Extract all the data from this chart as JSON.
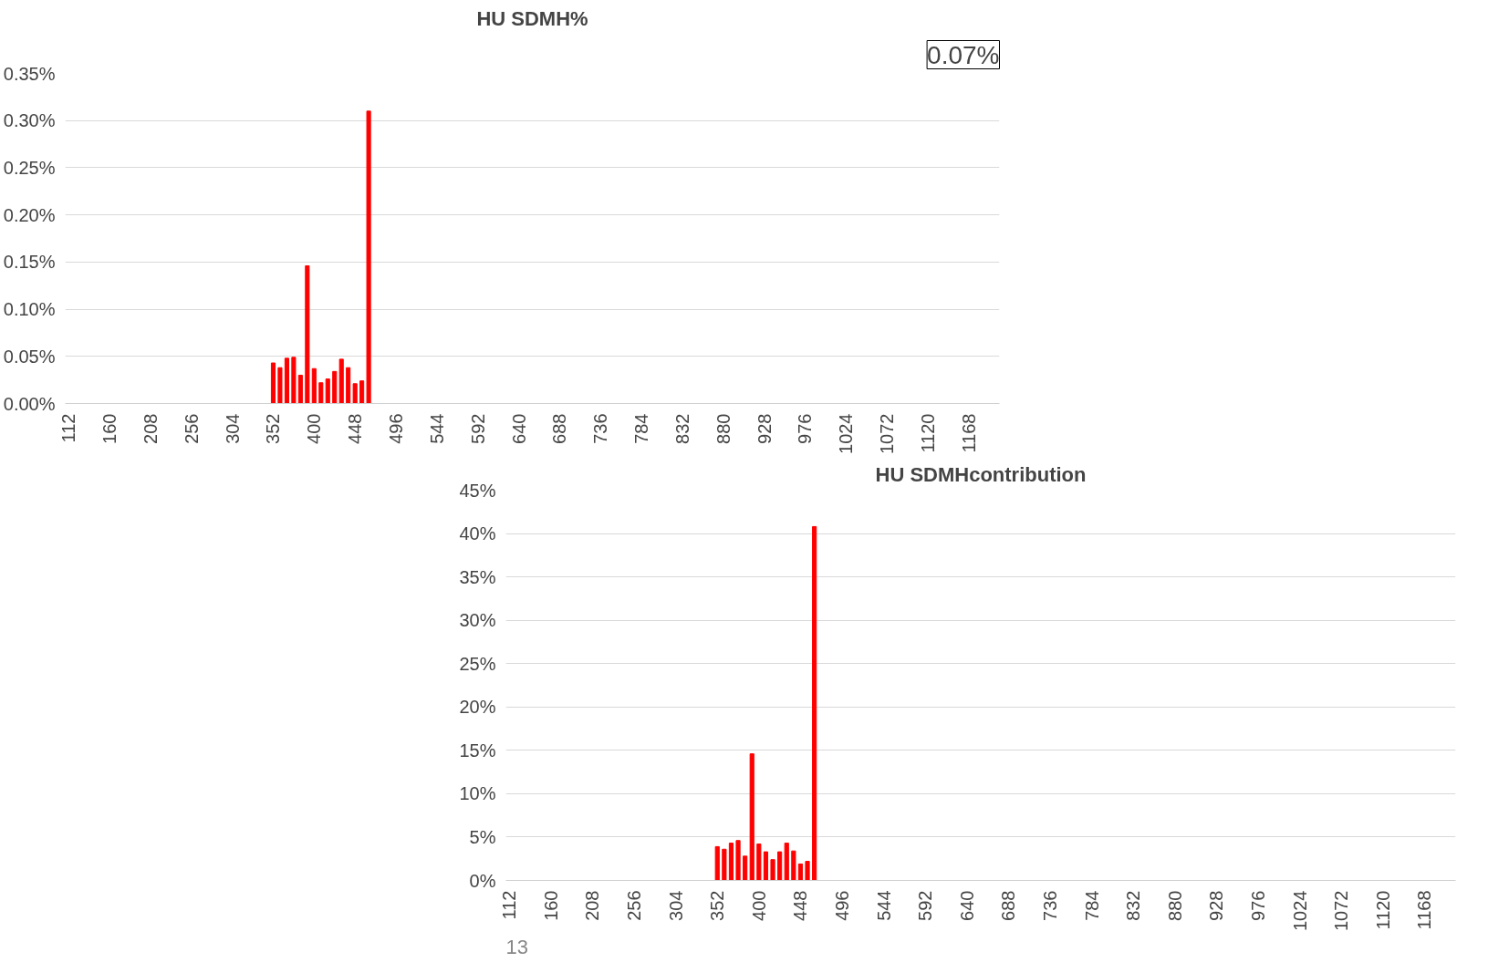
{
  "chart_data": [
    {
      "type": "bar",
      "title": "HU SDMH%",
      "annotations": [
        "0.07%"
      ],
      "categories": [
        "112",
        null,
        null,
        null,
        null,
        null,
        "160",
        null,
        null,
        null,
        null,
        null,
        "208",
        null,
        null,
        null,
        null,
        null,
        "256",
        null,
        null,
        null,
        null,
        null,
        "304",
        null,
        null,
        null,
        null,
        null,
        "352",
        null,
        null,
        null,
        null,
        null,
        "400",
        null,
        null,
        null,
        null,
        null,
        "448",
        null,
        null,
        null,
        null,
        null,
        "496",
        null,
        null,
        null,
        null,
        null,
        "544",
        null,
        null,
        null,
        null,
        null,
        "592",
        null,
        null,
        null,
        null,
        null,
        "640",
        null,
        null,
        null,
        null,
        null,
        "688",
        null,
        null,
        null,
        null,
        null,
        "736",
        null,
        null,
        null,
        null,
        null,
        "784",
        null,
        null,
        null,
        null,
        null,
        "832",
        null,
        null,
        null,
        null,
        null,
        "880",
        null,
        null,
        null,
        null,
        null,
        "928",
        null,
        null,
        null,
        null,
        null,
        "976",
        null,
        null,
        null,
        null,
        null,
        "1024",
        null,
        null,
        null,
        null,
        null,
        "1072",
        null,
        null,
        null,
        null,
        null,
        "1120",
        null,
        null,
        null,
        null,
        null,
        "1168",
        null,
        null,
        null,
        null
      ],
      "values": [
        0,
        0,
        0,
        0,
        0,
        0,
        0,
        0,
        0,
        0,
        0,
        0,
        0,
        0,
        0,
        0,
        0,
        0,
        0,
        0,
        0,
        0,
        0,
        0,
        0,
        0,
        0,
        0,
        0,
        0,
        0.043,
        0.038,
        0.048,
        0.049,
        0.03,
        0.146,
        0.037,
        0.022,
        0.026,
        0.034,
        0.047,
        0.038,
        0.021,
        0.024,
        0.31,
        0,
        0,
        0,
        0,
        0,
        0,
        0,
        0,
        0,
        0,
        0,
        0,
        0,
        0,
        0,
        0,
        0,
        0,
        0,
        0,
        0,
        0,
        0,
        0,
        0,
        0,
        0,
        0,
        0,
        0,
        0,
        0,
        0,
        0,
        0,
        0,
        0,
        0,
        0,
        0,
        0,
        0,
        0,
        0,
        0,
        0,
        0,
        0,
        0,
        0,
        0,
        0,
        0,
        0,
        0,
        0,
        0,
        0,
        0,
        0,
        0,
        0,
        0,
        0,
        0,
        0,
        0,
        0,
        0,
        0,
        0,
        0,
        0,
        0,
        0,
        0,
        0,
        0,
        0,
        0,
        0,
        0,
        0,
        0,
        0,
        0,
        0,
        0,
        0,
        0,
        0,
        0
      ],
      "color": "#ff0000",
      "ylim": [
        0,
        0.35
      ],
      "yticks": [
        {
          "value": 0,
          "label": "0.00%"
        },
        {
          "value": 0.05,
          "label": "0.05%"
        },
        {
          "value": 0.1,
          "label": "0.10%"
        },
        {
          "value": 0.15,
          "label": "0.15%"
        },
        {
          "value": 0.2,
          "label": "0.20%"
        },
        {
          "value": 0.25,
          "label": "0.25%"
        },
        {
          "value": 0.3,
          "label": "0.30%"
        },
        {
          "value": 0.35,
          "label": "0.35%"
        }
      ],
      "grid": "y"
    },
    {
      "type": "bar",
      "title": "HU SDMHcontribution",
      "annotations": [
        "13"
      ],
      "categories": [
        "112",
        null,
        null,
        null,
        null,
        null,
        "160",
        null,
        null,
        null,
        null,
        null,
        "208",
        null,
        null,
        null,
        null,
        null,
        "256",
        null,
        null,
        null,
        null,
        null,
        "304",
        null,
        null,
        null,
        null,
        null,
        "352",
        null,
        null,
        null,
        null,
        null,
        "400",
        null,
        null,
        null,
        null,
        null,
        "448",
        null,
        null,
        null,
        null,
        null,
        "496",
        null,
        null,
        null,
        null,
        null,
        "544",
        null,
        null,
        null,
        null,
        null,
        "592",
        null,
        null,
        null,
        null,
        null,
        "640",
        null,
        null,
        null,
        null,
        null,
        "688",
        null,
        null,
        null,
        null,
        null,
        "736",
        null,
        null,
        null,
        null,
        null,
        "784",
        null,
        null,
        null,
        null,
        null,
        "832",
        null,
        null,
        null,
        null,
        null,
        "880",
        null,
        null,
        null,
        null,
        null,
        "928",
        null,
        null,
        null,
        null,
        null,
        "976",
        null,
        null,
        null,
        null,
        null,
        "1024",
        null,
        null,
        null,
        null,
        null,
        "1072",
        null,
        null,
        null,
        null,
        null,
        "1120",
        null,
        null,
        null,
        null,
        null,
        "1168",
        null,
        null,
        null,
        null
      ],
      "values": [
        0,
        0,
        0,
        0,
        0,
        0,
        0,
        0,
        0,
        0,
        0,
        0,
        0,
        0,
        0,
        0,
        0,
        0,
        0,
        0,
        0,
        0,
        0,
        0,
        0,
        0,
        0,
        0,
        0,
        0,
        3.9,
        3.6,
        4.3,
        4.6,
        2.8,
        14.6,
        4.2,
        3.3,
        2.4,
        3.3,
        4.3,
        3.4,
        1.9,
        2.2,
        40.8,
        0,
        0,
        0,
        0,
        0,
        0,
        0,
        0,
        0,
        0,
        0,
        0,
        0,
        0,
        0,
        0,
        0,
        0,
        0,
        0,
        0,
        0,
        0,
        0,
        0,
        0,
        0,
        0,
        0,
        0,
        0,
        0,
        0,
        0,
        0,
        0,
        0,
        0,
        0,
        0,
        0,
        0,
        0,
        0,
        0,
        0,
        0,
        0,
        0,
        0,
        0,
        0,
        0,
        0,
        0,
        0,
        0,
        0,
        0,
        0,
        0,
        0,
        0,
        0,
        0,
        0,
        0,
        0,
        0,
        0,
        0,
        0,
        0,
        0,
        0,
        0,
        0,
        0,
        0,
        0,
        0,
        0,
        0,
        0,
        0,
        0,
        0,
        0,
        0,
        0,
        0,
        0
      ],
      "color": "#ff0000",
      "ylim": [
        0,
        45
      ],
      "yticks": [
        {
          "value": 0,
          "label": "0%"
        },
        {
          "value": 5,
          "label": "5%"
        },
        {
          "value": 10,
          "label": "10%"
        },
        {
          "value": 15,
          "label": "15%"
        },
        {
          "value": 20,
          "label": "20%"
        },
        {
          "value": 25,
          "label": "25%"
        },
        {
          "value": 30,
          "label": "30%"
        },
        {
          "value": 35,
          "label": "35%"
        },
        {
          "value": 40,
          "label": "40%"
        },
        {
          "value": 45,
          "label": "45%"
        }
      ],
      "grid": "y"
    }
  ]
}
